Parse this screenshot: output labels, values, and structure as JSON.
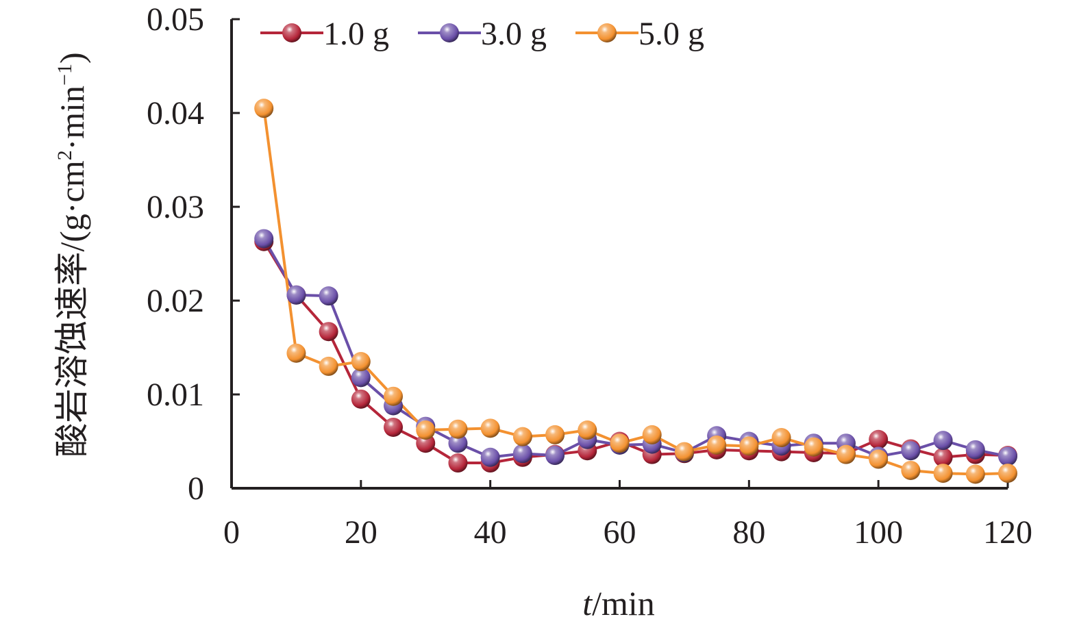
{
  "chart_data": {
    "type": "line",
    "title": "",
    "xlabel_italic": "t",
    "xlabel_unit": "/min",
    "ylabel": "酸岩溶蚀速率/(g·cm",
    "ylabel_sup1": "2",
    "ylabel_mid": "·min",
    "ylabel_sup2": "−1",
    "ylabel_end": ")",
    "xlim": [
      0,
      120
    ],
    "ylim": [
      0,
      0.05
    ],
    "xticks": [
      "0",
      "20",
      "40",
      "60",
      "80",
      "100",
      "120"
    ],
    "xtick_values": [
      0,
      20,
      40,
      60,
      80,
      100,
      120
    ],
    "yticks": [
      "0",
      "0.01",
      "0.02",
      "0.03",
      "0.04",
      "0.05"
    ],
    "ytick_values": [
      0,
      0.01,
      0.02,
      0.03,
      0.04,
      0.05
    ],
    "grid": false,
    "legend_position": "top",
    "x": [
      5,
      10,
      15,
      20,
      25,
      30,
      35,
      40,
      45,
      50,
      55,
      60,
      65,
      70,
      75,
      80,
      85,
      90,
      95,
      100,
      105,
      110,
      115,
      120
    ],
    "series": [
      {
        "name": "1.0 g",
        "color": "#b5263a",
        "values": [
          0.0263,
          0.0206,
          0.0167,
          0.0095,
          0.0065,
          0.0048,
          0.0027,
          0.0027,
          0.0033,
          0.0036,
          0.004,
          0.005,
          0.0036,
          0.0037,
          0.0041,
          0.004,
          0.0039,
          0.0038,
          0.0037,
          0.0052,
          0.0042,
          0.0033,
          0.0036,
          0.0035
        ]
      },
      {
        "name": "3.0 g",
        "color": "#6a4fa8",
        "values": [
          0.0266,
          0.0206,
          0.0205,
          0.0118,
          0.0088,
          0.0066,
          0.0048,
          0.0033,
          0.0037,
          0.0035,
          0.0052,
          0.0046,
          0.0047,
          0.0038,
          0.0056,
          0.005,
          0.0045,
          0.0048,
          0.0048,
          0.0034,
          0.004,
          0.0051,
          0.0041,
          0.0034
        ]
      },
      {
        "name": "5.0 g",
        "color": "#f39130",
        "values": [
          0.0405,
          0.0144,
          0.013,
          0.0135,
          0.0098,
          0.0062,
          0.0063,
          0.0064,
          0.0055,
          0.0057,
          0.0062,
          0.0048,
          0.0057,
          0.0039,
          0.0046,
          0.0045,
          0.0054,
          0.0044,
          0.0036,
          0.0031,
          0.0019,
          0.0016,
          0.0015,
          0.0016
        ]
      }
    ]
  }
}
